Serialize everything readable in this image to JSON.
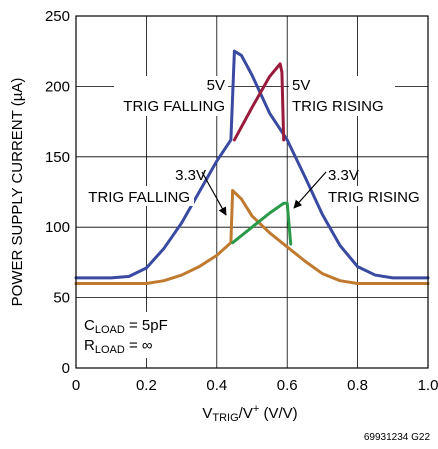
{
  "chart_data": {
    "type": "line",
    "xlabel_main": "V",
    "xlabel_sub": "TRIG",
    "xlabel_mid": "/V",
    "xlabel_sup": "+",
    "xlabel_end": " (V/V)",
    "ylabel": "POWER SUPPLY CURRENT (µA)",
    "xlim": [
      0,
      1.0
    ],
    "ylim": [
      0,
      250
    ],
    "x_ticks": [
      "0",
      "0.2",
      "0.4",
      "0.6",
      "0.8",
      "1.0"
    ],
    "y_ticks": [
      "0",
      "50",
      "100",
      "150",
      "200",
      "250"
    ],
    "grid": true,
    "series": [
      {
        "color": "#3a4aa0",
        "x": [
          0,
          0.1,
          0.15,
          0.2,
          0.25,
          0.3,
          0.35,
          0.4,
          0.44,
          0.45
        ],
        "y": [
          64,
          64,
          65,
          71,
          85,
          103,
          125,
          147,
          162,
          225
        ]
      },
      {
        "color": "#3a4aa0",
        "x": [
          0.45,
          0.47,
          0.5,
          0.55,
          0.6,
          0.65,
          0.7,
          0.75,
          0.8,
          0.85,
          0.9,
          1.0
        ],
        "y": [
          225,
          222,
          208,
          181,
          162,
          136,
          109,
          87,
          72,
          66,
          64,
          64
        ]
      },
      {
        "color": "#9a1c3c",
        "x": [
          0.45,
          0.5,
          0.55,
          0.58,
          0.585,
          0.59
        ],
        "y": [
          162,
          185,
          207,
          216,
          210,
          162
        ]
      },
      {
        "color": "#c07a30",
        "x": [
          0,
          0.1,
          0.2,
          0.25,
          0.3,
          0.35,
          0.4,
          0.44,
          0.445
        ],
        "y": [
          60,
          60,
          60,
          62,
          66,
          72,
          80,
          89,
          126
        ]
      },
      {
        "color": "#c07a30",
        "x": [
          0.445,
          0.47,
          0.5,
          0.55,
          0.6,
          0.65,
          0.7,
          0.75,
          0.8,
          0.85,
          1.0
        ],
        "y": [
          126,
          120,
          108,
          96,
          86,
          76,
          67,
          62,
          60,
          60,
          60
        ]
      },
      {
        "color": "#2a9a48",
        "x": [
          0.445,
          0.5,
          0.55,
          0.59,
          0.6,
          0.61
        ],
        "y": [
          89,
          100,
          110,
          117,
          117,
          88
        ]
      }
    ],
    "annotations": {
      "five_v_falling_1": "5V",
      "five_v_falling_2": "TRIG FALLING",
      "five_v_rising_1": "5V",
      "five_v_rising_2": "TRIG RISING",
      "three_v_falling_1": "3.3V",
      "three_v_falling_2": "TRIG FALLING",
      "three_v_rising_1": "3.3V",
      "three_v_rising_2": "TRIG RISING",
      "cload_main": "C",
      "cload_sub": "LOAD",
      "cload_val": " = 5pF",
      "rload_main": "R",
      "rload_sub": "LOAD",
      "rload_val": " = ∞"
    }
  },
  "figure_code": "69931234 G22"
}
